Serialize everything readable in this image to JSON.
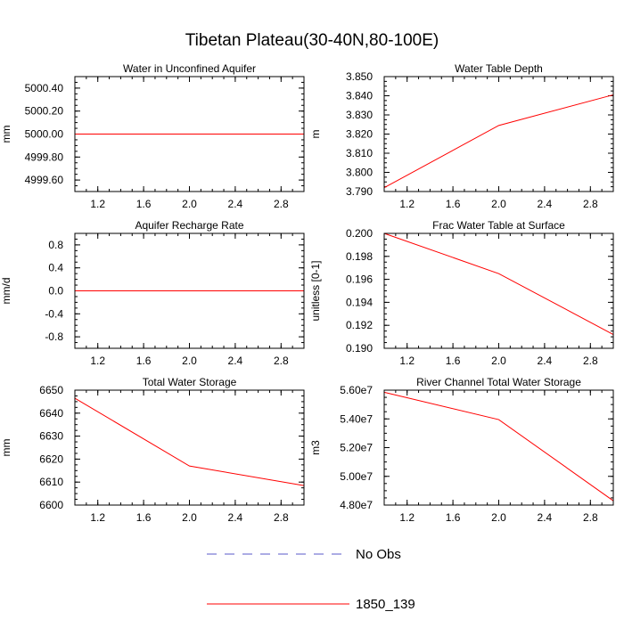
{
  "title": "Tibetan Plateau(30-40N,80-100E)",
  "legend": {
    "items": [
      {
        "label": "No Obs",
        "color": "#5a5ac8",
        "dash": true
      },
      {
        "label": "1850_139",
        "color": "#ff0000",
        "dash": false
      }
    ]
  },
  "chart_data": [
    {
      "type": "line",
      "title": "Water in Unconfined Aquifer",
      "ylabel": "mm",
      "xlim": [
        1,
        3
      ],
      "ylim": [
        4999.5,
        5000.5
      ],
      "xticks": [
        1.2,
        1.6,
        2.0,
        2.4,
        2.8
      ],
      "xtick_labels": [
        "1.2",
        "1.6",
        "2.0",
        "2.4",
        "2.8"
      ],
      "yticks": [
        4999.6,
        4999.8,
        5000.0,
        5000.2,
        5000.4
      ],
      "ytick_labels": [
        "4999.60",
        "4999.80",
        "5000.00",
        "5000.20",
        "5000.40"
      ],
      "series": [
        {
          "name": "1850_139",
          "x": [
            1,
            2,
            3
          ],
          "y": [
            5000.0,
            5000.0,
            5000.0
          ]
        }
      ]
    },
    {
      "type": "line",
      "title": "Water Table Depth",
      "ylabel": "m",
      "xlim": [
        1,
        3
      ],
      "ylim": [
        3.79,
        3.85
      ],
      "xticks": [
        1.2,
        1.6,
        2.0,
        2.4,
        2.8
      ],
      "xtick_labels": [
        "1.2",
        "1.6",
        "2.0",
        "2.4",
        "2.8"
      ],
      "yticks": [
        3.79,
        3.8,
        3.81,
        3.82,
        3.83,
        3.84,
        3.85
      ],
      "ytick_labels": [
        "3.790",
        "3.800",
        "3.810",
        "3.820",
        "3.830",
        "3.840",
        "3.850"
      ],
      "series": [
        {
          "name": "1850_139",
          "x": [
            1,
            2,
            3
          ],
          "y": [
            3.792,
            3.8245,
            3.8405
          ]
        }
      ]
    },
    {
      "type": "line",
      "title": "Aquifer Recharge Rate",
      "ylabel": "mm/d",
      "xlim": [
        1,
        3
      ],
      "ylim": [
        -1,
        1
      ],
      "xticks": [
        1.2,
        1.6,
        2.0,
        2.4,
        2.8
      ],
      "xtick_labels": [
        "1.2",
        "1.6",
        "2.0",
        "2.4",
        "2.8"
      ],
      "yticks": [
        -0.8,
        -0.4,
        0.0,
        0.4,
        0.8
      ],
      "ytick_labels": [
        "-0.8",
        "-0.4",
        "0.0",
        "0.4",
        "0.8"
      ],
      "series": [
        {
          "name": "1850_139",
          "x": [
            1,
            2,
            3
          ],
          "y": [
            0.0,
            0.0,
            0.0
          ]
        }
      ]
    },
    {
      "type": "line",
      "title": "Frac Water Table at Surface",
      "ylabel": "unitless [0-1]",
      "xlim": [
        1,
        3
      ],
      "ylim": [
        0.19,
        0.2
      ],
      "xticks": [
        1.2,
        1.6,
        2.0,
        2.4,
        2.8
      ],
      "xtick_labels": [
        "1.2",
        "1.6",
        "2.0",
        "2.4",
        "2.8"
      ],
      "yticks": [
        0.19,
        0.192,
        0.194,
        0.196,
        0.198,
        0.2
      ],
      "ytick_labels": [
        "0.190",
        "0.192",
        "0.194",
        "0.196",
        "0.198",
        "0.200"
      ],
      "series": [
        {
          "name": "1850_139",
          "x": [
            1,
            2,
            3
          ],
          "y": [
            0.2,
            0.1965,
            0.1912
          ]
        }
      ]
    },
    {
      "type": "line",
      "title": "Total Water Storage",
      "ylabel": "mm",
      "xlim": [
        1,
        3
      ],
      "ylim": [
        6600,
        6650
      ],
      "xticks": [
        1.2,
        1.6,
        2.0,
        2.4,
        2.8
      ],
      "xtick_labels": [
        "1.2",
        "1.6",
        "2.0",
        "2.4",
        "2.8"
      ],
      "yticks": [
        6600,
        6610,
        6620,
        6630,
        6640,
        6650
      ],
      "ytick_labels": [
        "6600",
        "6610",
        "6620",
        "6630",
        "6640",
        "6650"
      ],
      "series": [
        {
          "name": "1850_139",
          "x": [
            1,
            2,
            3
          ],
          "y": [
            6646.5,
            6617,
            6608.5
          ]
        }
      ]
    },
    {
      "type": "line",
      "title": "River Channel Total Water Storage",
      "ylabel": "m3",
      "xlim": [
        1,
        3
      ],
      "ylim": [
        48000000,
        56000000
      ],
      "xticks": [
        1.2,
        1.6,
        2.0,
        2.4,
        2.8
      ],
      "xtick_labels": [
        "1.2",
        "1.6",
        "2.0",
        "2.4",
        "2.8"
      ],
      "yticks": [
        48000000,
        50000000,
        52000000,
        54000000,
        56000000
      ],
      "ytick_labels": [
        "4.80e7",
        "5.00e7",
        "5.20e7",
        "5.40e7",
        "5.60e7"
      ],
      "series": [
        {
          "name": "1850_139",
          "x": [
            1,
            2,
            3
          ],
          "y": [
            55850000,
            53950000,
            48300000
          ]
        }
      ]
    }
  ]
}
